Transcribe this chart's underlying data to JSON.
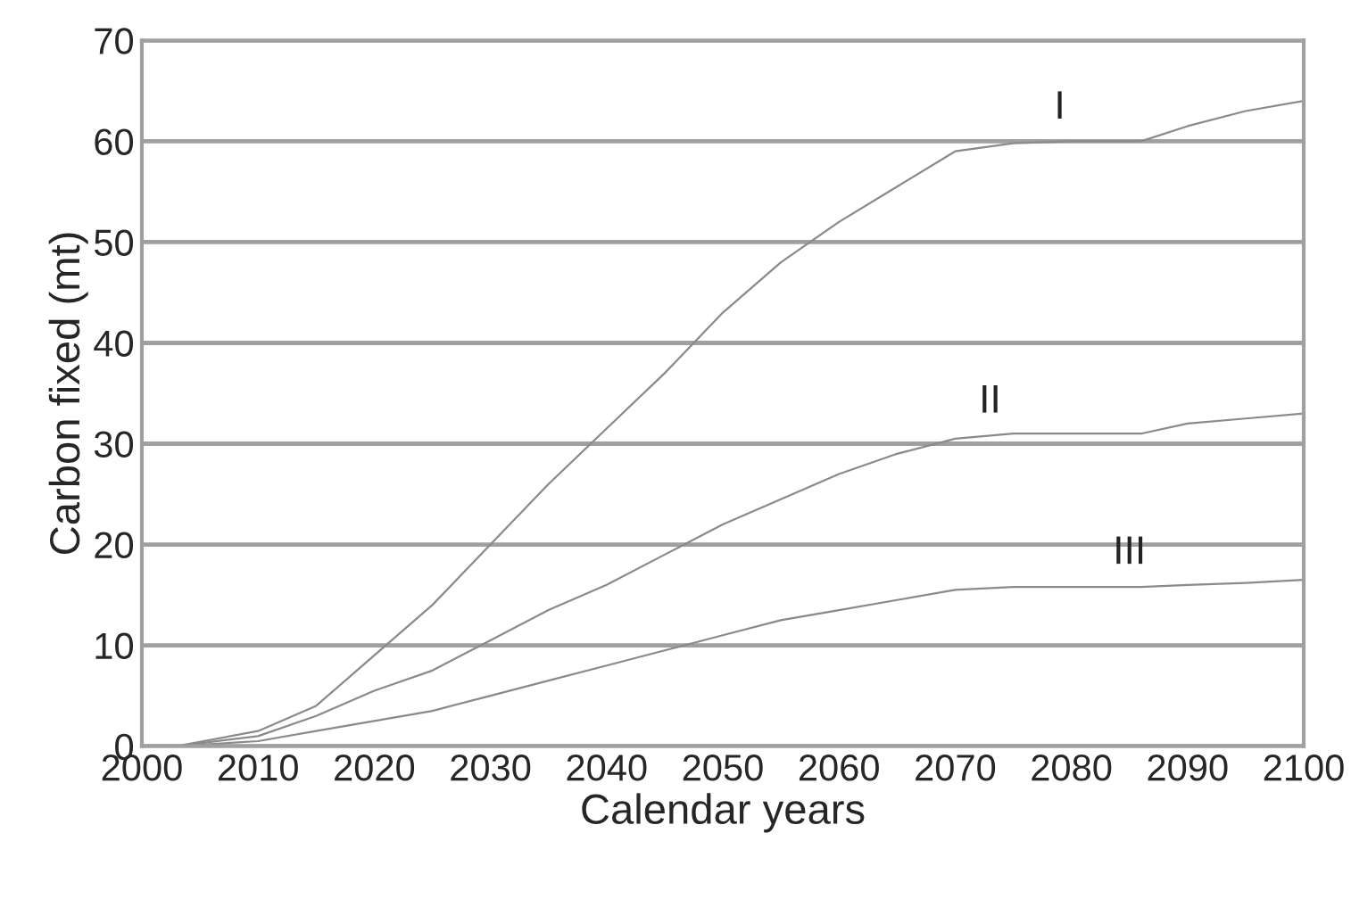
{
  "chart_data": {
    "type": "line",
    "xlabel": "Calendar years",
    "ylabel": "Carbon fixed (mt)",
    "x": [
      2003,
      2010,
      2015,
      2020,
      2025,
      2030,
      2035,
      2040,
      2045,
      2050,
      2055,
      2060,
      2065,
      2070,
      2075,
      2080,
      2086,
      2090,
      2095,
      2100
    ],
    "series": [
      {
        "name": "I",
        "color": "#8a8a8a",
        "values": [
          0,
          1.5,
          4,
          9,
          14,
          20,
          26,
          31.5,
          37,
          43,
          48,
          52,
          55.5,
          59,
          59.8,
          60,
          60,
          61.5,
          63,
          64
        ]
      },
      {
        "name": "II",
        "color": "#8a8a8a",
        "values": [
          0,
          1,
          3,
          5.5,
          7.5,
          10.5,
          13.5,
          16,
          19,
          22,
          24.5,
          27,
          29,
          30.5,
          31,
          31,
          31,
          32,
          32.5,
          33
        ]
      },
      {
        "name": "III",
        "color": "#8a8a8a",
        "values": [
          0,
          0.5,
          1.5,
          2.5,
          3.5,
          5,
          6.5,
          8,
          9.5,
          11,
          12.5,
          13.5,
          14.5,
          15.5,
          15.8,
          15.8,
          15.8,
          16,
          16.2,
          16.5
        ]
      }
    ],
    "xlim": [
      2000,
      2100
    ],
    "ylim": [
      0,
      70
    ],
    "xticks": [
      2000,
      2010,
      2020,
      2030,
      2040,
      2050,
      2060,
      2070,
      2080,
      2090,
      2100
    ],
    "yticks": [
      0,
      10,
      20,
      30,
      40,
      50,
      60,
      70
    ],
    "grid": "y",
    "marker": "none",
    "line_style": "solid"
  }
}
